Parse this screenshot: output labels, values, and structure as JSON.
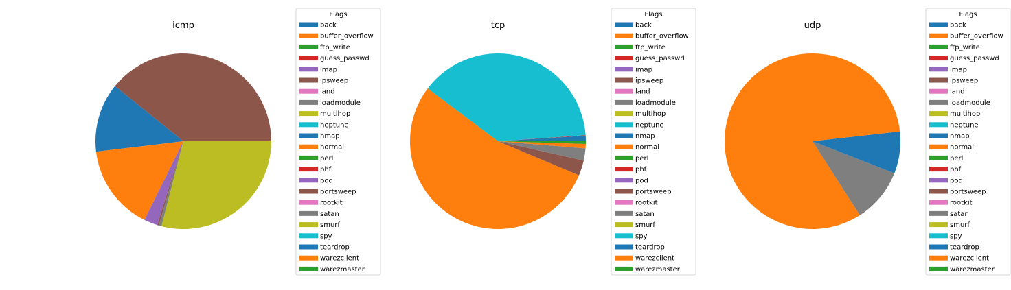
{
  "legend_title": "Flags",
  "flags": [
    "back",
    "buffer_overflow",
    "ftp_write",
    "guess_passwd",
    "imap",
    "ipsweep",
    "land",
    "loadmodule",
    "multihop",
    "neptune",
    "nmap",
    "normal",
    "perl",
    "phf",
    "pod",
    "portsweep",
    "rootkit",
    "satan",
    "smurf",
    "spy",
    "teardrop",
    "warezclient",
    "warezmaster"
  ],
  "colors": [
    "#1f77b4",
    "#ff7f0e",
    "#2ca02c",
    "#d62728",
    "#9467bd",
    "#8c564b",
    "#e377c2",
    "#7f7f7f",
    "#bcbd22",
    "#17becf",
    "#1f77b4",
    "#ff7f0e",
    "#2ca02c",
    "#d62728",
    "#9467bd",
    "#8c564b",
    "#e377c2",
    "#7f7f7f",
    "#bcbd22",
    "#17becf",
    "#1f77b4",
    "#ff7f0e",
    "#2ca02c"
  ],
  "chart_data": [
    {
      "type": "pie",
      "title": "icmp",
      "categories": [
        "back",
        "buffer_overflow",
        "ftp_write",
        "guess_passwd",
        "imap",
        "ipsweep",
        "land",
        "loadmodule",
        "multihop",
        "neptune",
        "nmap",
        "normal",
        "perl",
        "phf",
        "pod",
        "portsweep",
        "rootkit",
        "satan",
        "smurf",
        "spy",
        "teardrop",
        "warezclient",
        "warezmaster"
      ],
      "values": [
        0,
        0,
        0,
        0,
        0,
        39.2,
        0,
        0,
        0,
        0,
        12.7,
        15.8,
        0,
        0,
        2.5,
        0.3,
        0,
        0.5,
        29.0,
        0,
        0,
        0,
        0
      ],
      "legend": "right"
    },
    {
      "type": "pie",
      "title": "tcp",
      "categories": [
        "back",
        "buffer_overflow",
        "ftp_write",
        "guess_passwd",
        "imap",
        "ipsweep",
        "land",
        "loadmodule",
        "multihop",
        "neptune",
        "nmap",
        "normal",
        "perl",
        "phf",
        "pod",
        "portsweep",
        "rootkit",
        "satan",
        "smurf",
        "spy",
        "teardrop",
        "warezclient",
        "warezmaster"
      ],
      "values": [
        1.0,
        0,
        0,
        0.1,
        0,
        0,
        0,
        0,
        0,
        38.4,
        0,
        53.6,
        0,
        0,
        0,
        2.8,
        0,
        2.2,
        0,
        0,
        0,
        0.8,
        0.5
      ],
      "legend": "right"
    },
    {
      "type": "pie",
      "title": "udp",
      "categories": [
        "back",
        "buffer_overflow",
        "ftp_write",
        "guess_passwd",
        "imap",
        "ipsweep",
        "land",
        "loadmodule",
        "multihop",
        "neptune",
        "nmap",
        "normal",
        "perl",
        "phf",
        "pod",
        "portsweep",
        "rootkit",
        "satan",
        "smurf",
        "spy",
        "teardrop",
        "warezclient",
        "warezmaster"
      ],
      "values": [
        0,
        0,
        0,
        0,
        0,
        0,
        0,
        0,
        0,
        0,
        1.7,
        78.9,
        0,
        0,
        0,
        0,
        0,
        9.6,
        0,
        0,
        5.7,
        0,
        0
      ],
      "legend": "right"
    }
  ]
}
